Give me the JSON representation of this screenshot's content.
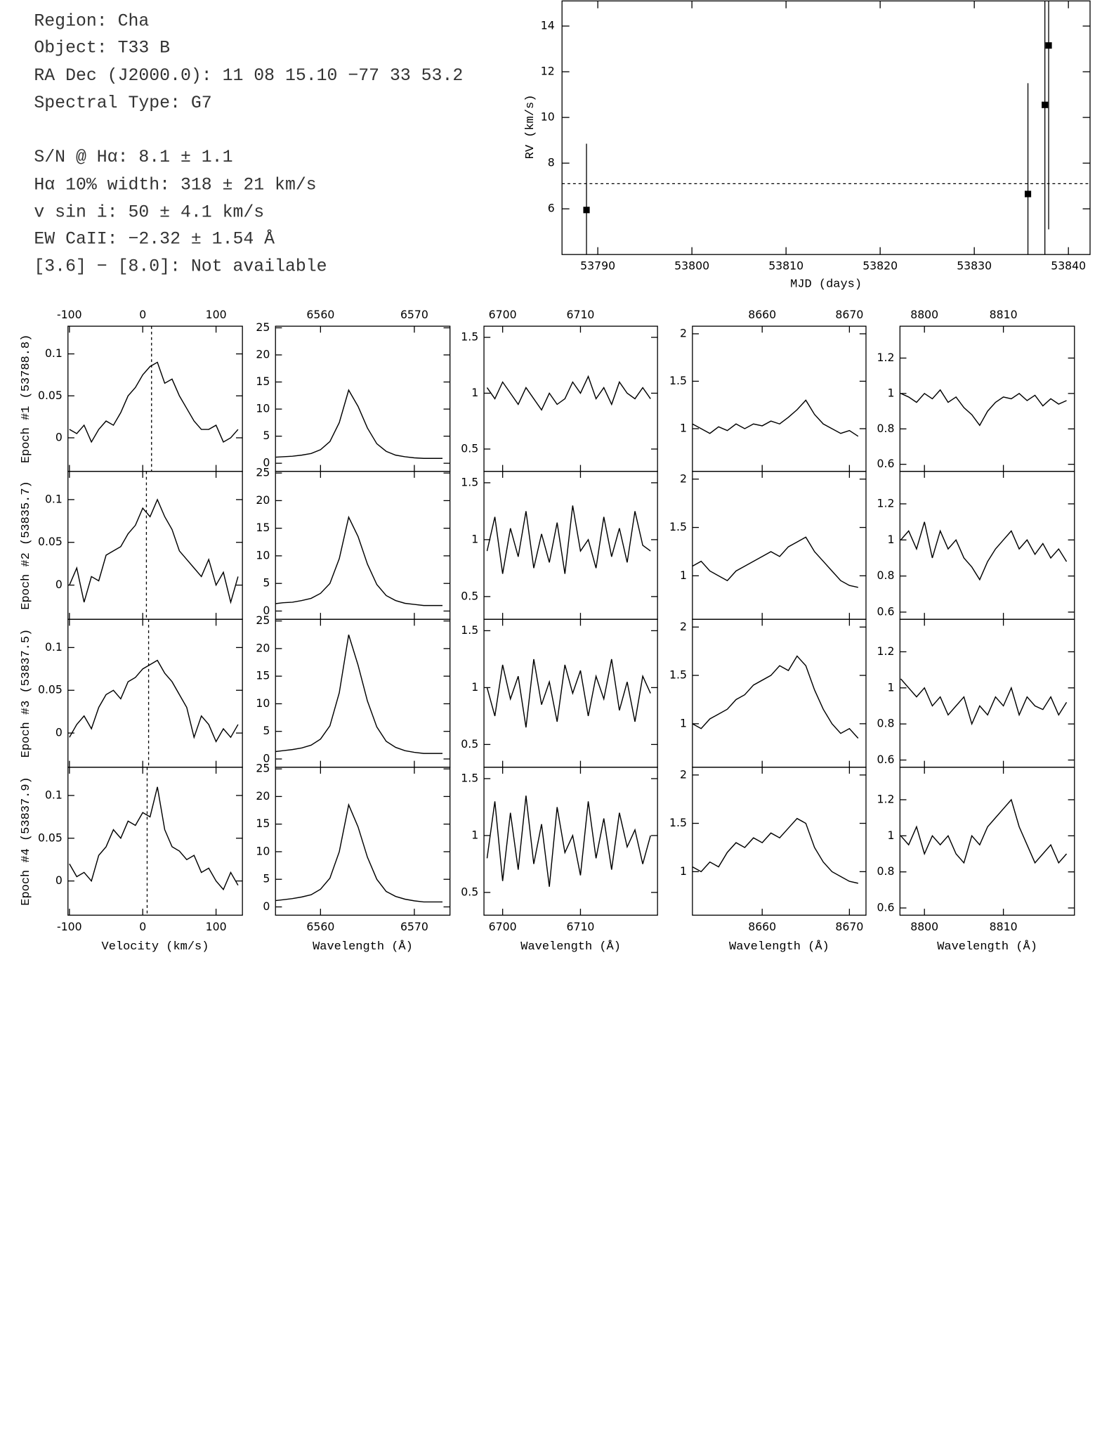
{
  "info": {
    "lines": [
      "Region: Cha",
      "Object: T33 B",
      "RA Dec (J2000.0): 11 08 15.10 −77 33 53.2",
      "Spectral Type: G7",
      "S/N @ Hα: 8.1 ± 1.1",
      "Hα 10% width: 318 ± 21 km/s",
      "v sin i: 50 ± 4.1 km/s",
      "EW CaII: −2.32 ± 1.54 Å",
      "[3.6] − [8.0]: Not available"
    ]
  },
  "chart_data": [
    {
      "type": "scatter",
      "xlabel": "MJD (days)",
      "ylabel": "RV (km/s)",
      "x": [
        53788.8,
        53835.7,
        53837.5,
        53837.9
      ],
      "values": [
        5.95,
        6.65,
        10.55,
        13.15
      ],
      "errors": [
        2.9,
        4.85,
        7.5,
        8.05
      ],
      "hline": 7.1,
      "xlim": [
        53786.2,
        53842.3
      ],
      "ylim": [
        4,
        15.1
      ],
      "xticks": [
        53790,
        53800,
        53810,
        53820,
        53830,
        53840
      ],
      "yticks": [
        6,
        8,
        10,
        12,
        14
      ],
      "color": "#000000"
    },
    {
      "type": "line",
      "xlabel": "Velocity (km/s)",
      "xlim": [
        -102,
        136
      ],
      "ylim": [
        -0.04,
        0.133
      ],
      "xticks": [
        -100,
        0,
        100
      ],
      "yticks": [
        0,
        0.05,
        0.1
      ],
      "color": "#000000",
      "x": [
        -100,
        -90,
        -80,
        -70,
        -60,
        -50,
        -40,
        -30,
        -20,
        -10,
        0,
        10,
        20,
        30,
        40,
        50,
        60,
        70,
        80,
        90,
        100,
        110,
        120,
        130
      ],
      "series": [
        {
          "name": "Epoch #1 (53788.8)",
          "vline": 12,
          "values": [
            0.01,
            0.005,
            0.015,
            -0.005,
            0.01,
            0.02,
            0.015,
            0.03,
            0.05,
            0.06,
            0.075,
            0.085,
            0.09,
            0.065,
            0.07,
            0.05,
            0.035,
            0.02,
            0.01,
            0.01,
            0.015,
            -0.005,
            0.0,
            0.01
          ]
        },
        {
          "name": "Epoch #2 (53835.7)",
          "vline": 5,
          "values": [
            0.0,
            0.02,
            -0.02,
            0.01,
            0.005,
            0.035,
            0.04,
            0.045,
            0.06,
            0.07,
            0.09,
            0.08,
            0.1,
            0.08,
            0.065,
            0.04,
            0.03,
            0.02,
            0.01,
            0.03,
            0.0,
            0.015,
            -0.02,
            0.01
          ]
        },
        {
          "name": "Epoch #3 (53837.5)",
          "vline": 8,
          "values": [
            -0.005,
            0.01,
            0.02,
            0.005,
            0.03,
            0.045,
            0.05,
            0.04,
            0.06,
            0.065,
            0.075,
            0.08,
            0.085,
            0.07,
            0.06,
            0.045,
            0.03,
            -0.005,
            0.02,
            0.01,
            -0.01,
            0.005,
            -0.005,
            0.01
          ]
        },
        {
          "name": "Epoch #4 (53837.9)",
          "vline": 6,
          "values": [
            0.02,
            0.005,
            0.01,
            0.0,
            0.03,
            0.04,
            0.06,
            0.05,
            0.07,
            0.065,
            0.08,
            0.075,
            0.11,
            0.06,
            0.04,
            0.035,
            0.025,
            0.03,
            0.01,
            0.015,
            0.0,
            -0.01,
            0.01,
            -0.005
          ]
        }
      ]
    },
    {
      "type": "line",
      "xlabel": "Wavelength (Å)",
      "xlim": [
        6555.2,
        6573.8
      ],
      "ylim": [
        -1.5,
        25.3
      ],
      "xticks": [
        6560,
        6570
      ],
      "yticks": [
        0,
        5,
        10,
        15,
        20,
        25
      ],
      "color": "#000000",
      "x": [
        6555,
        6556,
        6557,
        6558,
        6559,
        6560,
        6561,
        6562,
        6563,
        6564,
        6565,
        6566,
        6567,
        6568,
        6569,
        6570,
        6571,
        6572,
        6573
      ],
      "series": [
        {
          "values": [
            1.1,
            1.2,
            1.3,
            1.5,
            1.8,
            2.5,
            4,
            7.5,
            13.5,
            10.5,
            6.5,
            3.6,
            2.2,
            1.5,
            1.2,
            1.0,
            0.9,
            0.9,
            0.9
          ]
        },
        {
          "values": [
            1.3,
            1.5,
            1.6,
            1.9,
            2.3,
            3.2,
            5,
            9.5,
            17,
            13.5,
            8.5,
            4.8,
            2.8,
            1.9,
            1.4,
            1.2,
            1.0,
            1.0,
            1.0
          ]
        },
        {
          "values": [
            1.3,
            1.5,
            1.7,
            2,
            2.5,
            3.6,
            6,
            12,
            22.5,
            17,
            10.5,
            5.8,
            3.2,
            2.1,
            1.5,
            1.2,
            1.0,
            1.0,
            1.0
          ]
        },
        {
          "values": [
            1.1,
            1.3,
            1.5,
            1.8,
            2.2,
            3.2,
            5.2,
            10,
            18.5,
            14.5,
            9,
            5,
            2.8,
            1.9,
            1.4,
            1.1,
            0.9,
            0.9,
            0.9
          ]
        }
      ]
    },
    {
      "type": "line",
      "xlabel": "Wavelength (Å)",
      "xlim": [
        6697.6,
        6719.9
      ],
      "ylim": [
        0.3,
        1.6
      ],
      "xticks": [
        6700,
        6710
      ],
      "yticks": [
        0.5,
        1,
        1.5
      ],
      "color": "#000000",
      "x": [
        6698,
        6699,
        6700,
        6701,
        6702,
        6703,
        6704,
        6705,
        6706,
        6707,
        6708,
        6709,
        6710,
        6711,
        6712,
        6713,
        6714,
        6715,
        6716,
        6717,
        6718,
        6719
      ],
      "series": [
        {
          "values": [
            1.05,
            0.95,
            1.1,
            1.0,
            0.9,
            1.05,
            0.95,
            0.85,
            1.0,
            0.9,
            0.95,
            1.1,
            1.0,
            1.15,
            0.95,
            1.05,
            0.9,
            1.1,
            1.0,
            0.95,
            1.05,
            0.95
          ]
        },
        {
          "values": [
            0.9,
            1.2,
            0.7,
            1.1,
            0.85,
            1.25,
            0.75,
            1.05,
            0.8,
            1.15,
            0.7,
            1.3,
            0.9,
            1.0,
            0.75,
            1.2,
            0.85,
            1.1,
            0.8,
            1.25,
            0.95,
            0.9
          ]
        },
        {
          "values": [
            1.0,
            0.75,
            1.2,
            0.9,
            1.1,
            0.65,
            1.25,
            0.85,
            1.05,
            0.7,
            1.2,
            0.95,
            1.15,
            0.75,
            1.1,
            0.9,
            1.25,
            0.8,
            1.05,
            0.7,
            1.1,
            0.95
          ]
        },
        {
          "values": [
            0.8,
            1.3,
            0.6,
            1.2,
            0.7,
            1.35,
            0.75,
            1.1,
            0.55,
            1.25,
            0.85,
            1.0,
            0.65,
            1.3,
            0.8,
            1.15,
            0.7,
            1.2,
            0.9,
            1.05,
            0.75,
            1.0
          ]
        }
      ]
    },
    {
      "type": "line",
      "xlabel": "Wavelength (Å)",
      "xlim": [
        8652,
        8671.9
      ],
      "ylim": [
        0.55,
        2.08
      ],
      "xticks": [
        8660,
        8670
      ],
      "yticks": [
        1,
        1.5,
        2
      ],
      "color": "#000000",
      "x": [
        8652,
        8653,
        8654,
        8655,
        8656,
        8657,
        8658,
        8659,
        8660,
        8661,
        8662,
        8663,
        8664,
        8665,
        8666,
        8667,
        8668,
        8669,
        8670,
        8671
      ],
      "series": [
        {
          "values": [
            1.05,
            1.0,
            0.95,
            1.02,
            0.98,
            1.05,
            1.0,
            1.05,
            1.03,
            1.08,
            1.05,
            1.12,
            1.2,
            1.3,
            1.15,
            1.05,
            1.0,
            0.95,
            0.98,
            0.92
          ]
        },
        {
          "values": [
            1.1,
            1.15,
            1.05,
            1.0,
            0.95,
            1.05,
            1.1,
            1.15,
            1.2,
            1.25,
            1.2,
            1.3,
            1.35,
            1.4,
            1.25,
            1.15,
            1.05,
            0.95,
            0.9,
            0.88
          ]
        },
        {
          "values": [
            1.0,
            0.95,
            1.05,
            1.1,
            1.15,
            1.25,
            1.3,
            1.4,
            1.45,
            1.5,
            1.6,
            1.55,
            1.7,
            1.6,
            1.35,
            1.15,
            1.0,
            0.9,
            0.95,
            0.85
          ]
        },
        {
          "values": [
            1.05,
            1.0,
            1.1,
            1.05,
            1.2,
            1.3,
            1.25,
            1.35,
            1.3,
            1.4,
            1.35,
            1.45,
            1.55,
            1.5,
            1.25,
            1.1,
            1.0,
            0.95,
            0.9,
            0.88
          ]
        }
      ]
    },
    {
      "type": "line",
      "xlabel": "Wavelength (Å)",
      "xlim": [
        8796.9,
        8819
      ],
      "ylim": [
        0.56,
        1.38
      ],
      "xticks": [
        8800,
        8810
      ],
      "yticks": [
        0.6,
        0.8,
        1,
        1.2
      ],
      "color": "#000000",
      "x": [
        8797,
        8798,
        8799,
        8800,
        8801,
        8802,
        8803,
        8804,
        8805,
        8806,
        8807,
        8808,
        8809,
        8810,
        8811,
        8812,
        8813,
        8814,
        8815,
        8816,
        8817,
        8818
      ],
      "series": [
        {
          "values": [
            1.0,
            0.98,
            0.95,
            1.0,
            0.97,
            1.02,
            0.95,
            0.98,
            0.92,
            0.88,
            0.82,
            0.9,
            0.95,
            0.98,
            0.97,
            1.0,
            0.96,
            0.99,
            0.93,
            0.97,
            0.94,
            0.96
          ]
        },
        {
          "values": [
            1.0,
            1.05,
            0.95,
            1.1,
            0.9,
            1.05,
            0.95,
            1.0,
            0.9,
            0.85,
            0.78,
            0.88,
            0.95,
            1.0,
            1.05,
            0.95,
            1.0,
            0.92,
            0.98,
            0.9,
            0.95,
            0.88
          ]
        },
        {
          "values": [
            1.05,
            1.0,
            0.95,
            1.0,
            0.9,
            0.95,
            0.85,
            0.9,
            0.95,
            0.8,
            0.9,
            0.85,
            0.95,
            0.9,
            1.0,
            0.85,
            0.95,
            0.9,
            0.88,
            0.95,
            0.85,
            0.92
          ]
        },
        {
          "values": [
            1.0,
            0.95,
            1.05,
            0.9,
            1.0,
            0.95,
            1.0,
            0.9,
            0.85,
            1.0,
            0.95,
            1.05,
            1.1,
            1.15,
            1.2,
            1.05,
            0.95,
            0.85,
            0.9,
            0.95,
            0.85,
            0.9
          ]
        }
      ]
    }
  ]
}
